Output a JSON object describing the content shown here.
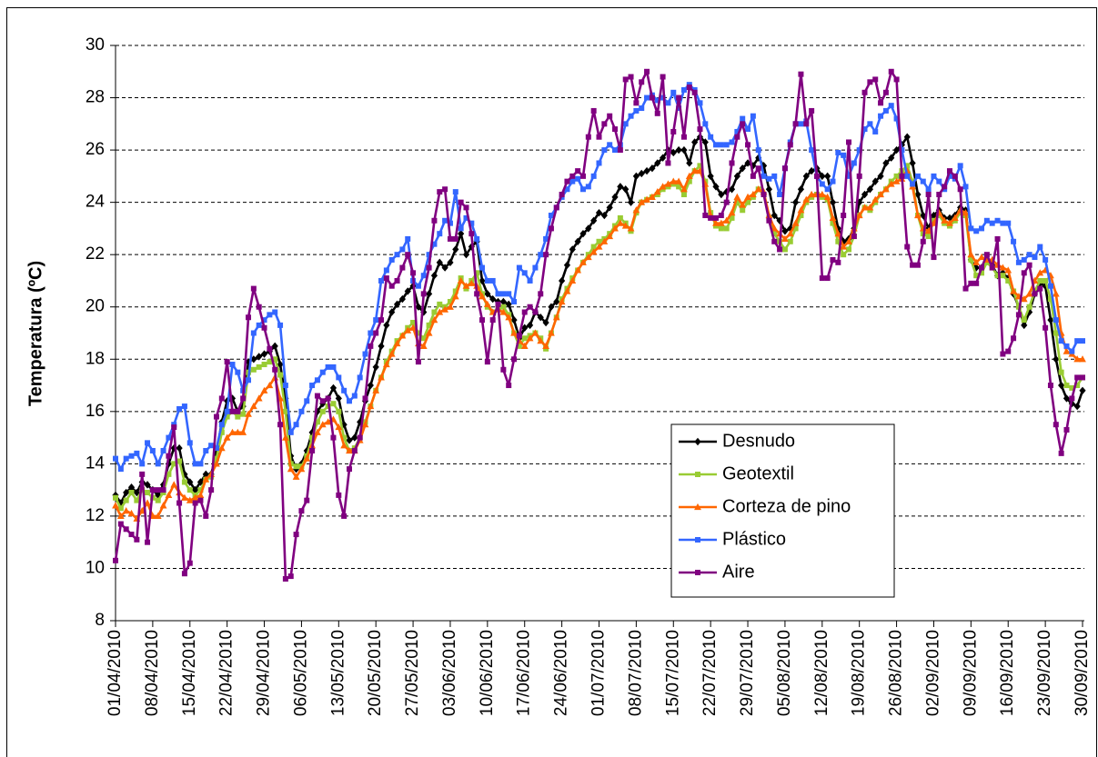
{
  "chart_data": {
    "type": "line",
    "y_label": "Temperatura (ºC)",
    "ylim": [
      8,
      30
    ],
    "yticks": [
      8,
      10,
      12,
      14,
      16,
      18,
      20,
      22,
      24,
      26,
      28,
      30
    ],
    "grid": true,
    "legend": "lower right",
    "categories": [
      "01/04/2010",
      null,
      null,
      null,
      null,
      null,
      null,
      "08/04/2010",
      null,
      null,
      null,
      null,
      null,
      null,
      "15/04/2010",
      null,
      null,
      null,
      null,
      null,
      null,
      "22/04/2010",
      null,
      null,
      null,
      null,
      null,
      null,
      "29/04/2010",
      null,
      null,
      null,
      null,
      null,
      null,
      "06/05/2010",
      null,
      null,
      null,
      null,
      null,
      null,
      "13/05/2010",
      null,
      null,
      null,
      null,
      null,
      null,
      "20/05/2010",
      null,
      null,
      null,
      null,
      null,
      null,
      "27/05/2010",
      null,
      null,
      null,
      null,
      null,
      null,
      "03/06/2010",
      null,
      null,
      null,
      null,
      null,
      null,
      "10/06/2010",
      null,
      null,
      null,
      null,
      null,
      null,
      "17/06/2010",
      null,
      null,
      null,
      null,
      null,
      null,
      "24/06/2010",
      null,
      null,
      null,
      null,
      null,
      null,
      "01/07/2010",
      null,
      null,
      null,
      null,
      null,
      null,
      "08/07/2010",
      null,
      null,
      null,
      null,
      null,
      null,
      "15/07/2010",
      null,
      null,
      null,
      null,
      null,
      null,
      "22/07/2010",
      null,
      null,
      null,
      null,
      null,
      null,
      "29/07/2010",
      null,
      null,
      null,
      null,
      null,
      null,
      "05/08/2010",
      null,
      null,
      null,
      null,
      null,
      null,
      "12/08/2010",
      null,
      null,
      null,
      null,
      null,
      null,
      "19/08/2010",
      null,
      null,
      null,
      null,
      null,
      null,
      "26/08/2010",
      null,
      null,
      null,
      null,
      null,
      null,
      "02/09/2010",
      null,
      null,
      null,
      null,
      null,
      null,
      "09/09/2010",
      null,
      null,
      null,
      null,
      null,
      null,
      "16/09/2010",
      null,
      null,
      null,
      null,
      null,
      null,
      "23/09/2010",
      null,
      null,
      null,
      null,
      null,
      null,
      "30/09/2010"
    ],
    "series": [
      {
        "name": "Desnudo",
        "color": "#000000",
        "marker": "diamond",
        "values": [
          12.8,
          12.5,
          12.9,
          13.1,
          12.9,
          13.3,
          13.2,
          13.0,
          12.8,
          13.2,
          14.0,
          14.6,
          14.6,
          13.6,
          13.3,
          13.0,
          13.3,
          13.6,
          13.6,
          14.4,
          15.6,
          16.4,
          16.5,
          16.0,
          16.2,
          17.9,
          18.0,
          18.1,
          18.2,
          18.3,
          18.5,
          17.8,
          16.5,
          14.3,
          13.8,
          14.0,
          14.5,
          15.2,
          16.0,
          16.3,
          16.5,
          16.9,
          16.5,
          15.5,
          14.9,
          15.0,
          15.6,
          16.4,
          17.0,
          17.7,
          18.5,
          19.3,
          19.8,
          20.1,
          20.3,
          20.6,
          20.8,
          20.0,
          19.8,
          20.5,
          21.2,
          21.7,
          21.5,
          21.7,
          22.2,
          22.8,
          22.0,
          22.3,
          22.5,
          21.0,
          20.5,
          20.3,
          20.2,
          20.2,
          20.1,
          19.5,
          18.8,
          19.2,
          19.3,
          19.8,
          19.6,
          19.4,
          20.0,
          20.2,
          21.0,
          21.6,
          22.2,
          22.5,
          22.8,
          23.0,
          23.3,
          23.6,
          23.5,
          23.8,
          24.2,
          24.6,
          24.5,
          24.0,
          25.0,
          25.1,
          25.2,
          25.3,
          25.5,
          25.7,
          26.0,
          25.9,
          26.0,
          26.0,
          25.5,
          26.3,
          26.5,
          26.3,
          25.0,
          24.6,
          24.3,
          24.4,
          24.5,
          25.0,
          25.3,
          25.5,
          25.4,
          25.7,
          25.4,
          24.5,
          23.5,
          23.3,
          22.9,
          23.0,
          24.0,
          24.5,
          25.0,
          25.2,
          25.3,
          25.0,
          25.0,
          24.0,
          23.0,
          22.5,
          22.6,
          23.0,
          24.0,
          24.3,
          24.5,
          24.8,
          25.0,
          25.5,
          25.7,
          26.0,
          26.2,
          26.5,
          25.5,
          24.3,
          23.5,
          23.0,
          23.5,
          23.7,
          23.4,
          23.4,
          23.5,
          23.8,
          23.7,
          21.8,
          21.5,
          21.5,
          21.8,
          21.6,
          21.2,
          21.3,
          21.1,
          20.5,
          20.0,
          19.3,
          19.8,
          20.5,
          20.9,
          20.8,
          19.5,
          18.0,
          17.0,
          16.5,
          16.3,
          16.2,
          16.8
        ]
      },
      {
        "name": "Geotextil",
        "color": "#99cc33",
        "marker": "square",
        "values": [
          12.7,
          12.3,
          12.6,
          12.9,
          12.6,
          13.0,
          12.9,
          12.7,
          12.6,
          12.9,
          13.6,
          14.0,
          14.1,
          13.3,
          13.0,
          12.8,
          13.0,
          13.4,
          13.5,
          14.2,
          15.2,
          15.8,
          16.0,
          15.8,
          15.9,
          17.5,
          17.6,
          17.7,
          17.8,
          17.9,
          18.0,
          17.4,
          16.0,
          14.0,
          13.9,
          13.9,
          14.3,
          15.0,
          15.6,
          16.0,
          16.2,
          16.3,
          16.0,
          15.0,
          14.5,
          14.6,
          15.0,
          15.6,
          16.2,
          16.8,
          17.3,
          17.9,
          18.3,
          18.7,
          18.9,
          19.2,
          19.4,
          19.0,
          18.8,
          19.3,
          19.8,
          20.1,
          20.0,
          20.2,
          20.6,
          21.1,
          20.7,
          21.0,
          21.3,
          20.5,
          20.0,
          19.8,
          19.9,
          20.0,
          19.7,
          19.0,
          18.5,
          18.8,
          18.9,
          19.0,
          18.8,
          18.4,
          19.0,
          19.6,
          20.3,
          20.7,
          21.1,
          21.4,
          21.7,
          22.0,
          22.3,
          22.5,
          22.6,
          22.8,
          23.1,
          23.4,
          23.2,
          22.9,
          23.6,
          24.0,
          24.1,
          24.2,
          24.3,
          24.5,
          24.6,
          24.7,
          24.6,
          24.3,
          24.8,
          25.2,
          25.4,
          24.8,
          23.6,
          23.1,
          23.0,
          23.0,
          23.4,
          24.0,
          23.7,
          24.0,
          24.2,
          24.5,
          24.3,
          23.4,
          22.8,
          22.5,
          22.2,
          22.5,
          23.0,
          23.5,
          24.0,
          24.2,
          24.3,
          24.2,
          24.1,
          23.2,
          22.5,
          22.0,
          22.2,
          22.7,
          23.5,
          23.8,
          23.7,
          24.0,
          24.3,
          24.5,
          24.8,
          25.0,
          25.2,
          25.4,
          24.8,
          23.5,
          22.8,
          22.7,
          23.3,
          23.5,
          23.2,
          23.1,
          23.3,
          23.6,
          23.5,
          21.8,
          21.2,
          21.3,
          21.7,
          21.5,
          21.2,
          21.2,
          21.0,
          20.6,
          20.0,
          19.5,
          20.0,
          20.6,
          21.0,
          21.0,
          20.3,
          19.0,
          17.5,
          17.0,
          16.9,
          17.0,
          17.3
        ]
      },
      {
        "name": "Corteza de pino",
        "color": "#ff6600",
        "marker": "triangle",
        "values": [
          12.4,
          12.0,
          12.2,
          12.1,
          11.9,
          12.2,
          12.5,
          12.0,
          12.0,
          12.4,
          12.8,
          13.2,
          12.9,
          12.7,
          12.6,
          12.7,
          12.8,
          13.4,
          13.6,
          14.0,
          14.6,
          15.0,
          15.2,
          15.2,
          15.2,
          15.9,
          16.2,
          16.5,
          16.8,
          17.0,
          17.3,
          16.5,
          15.0,
          13.8,
          13.5,
          13.8,
          14.2,
          14.7,
          15.2,
          15.5,
          15.6,
          15.7,
          15.4,
          14.7,
          14.5,
          14.5,
          14.9,
          15.5,
          16.2,
          16.8,
          17.3,
          17.8,
          18.2,
          18.6,
          18.9,
          19.1,
          19.2,
          18.6,
          18.5,
          19.0,
          19.5,
          19.8,
          19.9,
          20.0,
          20.4,
          21.0,
          20.8,
          20.9,
          20.8,
          20.4,
          20.1,
          19.8,
          19.9,
          19.8,
          19.6,
          19.0,
          18.7,
          18.5,
          18.8,
          19.0,
          18.7,
          18.5,
          19.0,
          19.6,
          20.2,
          20.6,
          21.0,
          21.4,
          21.7,
          21.9,
          22.1,
          22.3,
          22.5,
          22.7,
          23.0,
          23.2,
          23.1,
          23.0,
          23.7,
          24.0,
          24.1,
          24.2,
          24.4,
          24.6,
          24.7,
          24.8,
          24.8,
          24.5,
          25.0,
          25.2,
          25.2,
          24.7,
          23.5,
          23.2,
          23.2,
          23.3,
          23.6,
          24.2,
          23.9,
          24.2,
          24.3,
          24.5,
          24.4,
          23.5,
          23.0,
          22.8,
          22.6,
          22.8,
          23.2,
          23.7,
          24.1,
          24.3,
          24.3,
          24.3,
          24.2,
          23.4,
          22.8,
          22.3,
          22.5,
          23.0,
          23.5,
          23.8,
          23.8,
          24.1,
          24.3,
          24.5,
          24.7,
          24.8,
          24.9,
          25.2,
          24.6,
          23.5,
          23.0,
          22.9,
          23.2,
          23.6,
          23.3,
          23.2,
          23.4,
          23.7,
          23.6,
          22.0,
          21.7,
          21.9,
          21.8,
          21.8,
          21.6,
          21.5,
          21.4,
          20.6,
          20.4,
          20.3,
          20.5,
          21.0,
          21.3,
          21.4,
          21.2,
          20.5,
          19.0,
          18.3,
          18.2,
          18.0,
          18.0
        ]
      },
      {
        "name": "Plástico",
        "color": "#3366ff",
        "marker": "square",
        "values": [
          14.2,
          13.8,
          14.2,
          14.3,
          14.4,
          14.0,
          14.8,
          14.5,
          14.0,
          14.5,
          15.0,
          15.5,
          16.1,
          16.2,
          14.8,
          14.0,
          14.0,
          14.5,
          14.7,
          14.6,
          15.5,
          16.0,
          17.8,
          17.5,
          16.8,
          17.2,
          19.0,
          19.3,
          19.5,
          19.7,
          19.8,
          19.3,
          17.0,
          15.2,
          15.5,
          16.0,
          16.4,
          17.0,
          17.2,
          17.5,
          17.7,
          17.7,
          17.3,
          16.8,
          16.4,
          16.6,
          17.3,
          18.2,
          19.0,
          19.5,
          21.0,
          21.4,
          21.8,
          22.0,
          22.2,
          22.6,
          21.0,
          20.8,
          21.2,
          22.0,
          22.4,
          22.8,
          23.3,
          23.2,
          24.4,
          23.0,
          23.4,
          23.2,
          22.6,
          21.5,
          21.0,
          21.0,
          20.5,
          20.5,
          20.5,
          20.2,
          21.5,
          21.3,
          21.0,
          21.5,
          22.0,
          22.6,
          23.5,
          23.8,
          24.2,
          24.5,
          24.8,
          24.9,
          24.5,
          24.6,
          25.0,
          25.5,
          26.0,
          26.2,
          26.0,
          26.2,
          27.0,
          27.3,
          27.5,
          27.6,
          28.0,
          28.1,
          27.9,
          28.0,
          27.8,
          28.2,
          27.6,
          28.3,
          28.5,
          28.3,
          27.8,
          27.0,
          26.5,
          26.2,
          26.2,
          26.2,
          26.3,
          26.7,
          27.2,
          26.8,
          27.3,
          26.0,
          25.0,
          24.9,
          25.0,
          24.3,
          25.3,
          26.3,
          27.0,
          27.0,
          27.1,
          26.0,
          25.0,
          24.7,
          24.5,
          24.8,
          25.9,
          25.8,
          25.0,
          25.5,
          26.0,
          26.8,
          27.0,
          26.7,
          27.3,
          27.5,
          27.7,
          27.2,
          26.0,
          25.0,
          24.7,
          25.0,
          24.8,
          24.5,
          25.0,
          24.8,
          24.5,
          25.0,
          24.9,
          25.4,
          24.6,
          23.0,
          22.9,
          23.0,
          23.3,
          23.2,
          23.3,
          23.2,
          23.2,
          22.5,
          21.7,
          21.8,
          22.0,
          21.9,
          22.3,
          21.8,
          20.8,
          19.5,
          18.7,
          18.5,
          18.3,
          18.7,
          18.7
        ]
      },
      {
        "name": "Aire",
        "color": "#800080",
        "marker": "square",
        "values": [
          10.3,
          11.7,
          11.5,
          11.3,
          11.1,
          13.6,
          11.0,
          13.0,
          13.0,
          13.0,
          14.3,
          15.4,
          12.5,
          9.8,
          10.2,
          12.5,
          12.6,
          12.0,
          13.0,
          15.8,
          16.5,
          17.9,
          16.0,
          16.0,
          16.5,
          19.6,
          20.7,
          20.0,
          19.2,
          18.4,
          17.6,
          15.5,
          9.6,
          9.7,
          11.3,
          12.2,
          12.6,
          14.5,
          16.6,
          16.4,
          16.5,
          15.0,
          12.8,
          12.0,
          13.8,
          14.5,
          15.0,
          16.5,
          18.5,
          19.0,
          19.5,
          21.1,
          20.8,
          21.0,
          21.5,
          22.0,
          21.3,
          17.9,
          20.5,
          21.5,
          23.3,
          24.4,
          24.5,
          22.6,
          22.6,
          24.0,
          23.8,
          22.8,
          20.5,
          19.5,
          17.9,
          19.5,
          20.1,
          17.6,
          17.0,
          18.0,
          18.9,
          19.8,
          20.0,
          19.8,
          20.5,
          22.0,
          23.0,
          23.8,
          24.3,
          24.8,
          25.0,
          25.2,
          25.0,
          26.5,
          27.5,
          26.5,
          27.0,
          27.3,
          26.8,
          26.0,
          28.7,
          28.8,
          27.8,
          28.6,
          29.0,
          28.0,
          27.4,
          28.8,
          25.5,
          26.7,
          28.0,
          26.5,
          28.4,
          28.2,
          26.8,
          23.5,
          23.4,
          23.4,
          23.5,
          24.0,
          25.5,
          26.5,
          27.0,
          26.2,
          25.0,
          25.3,
          24.3,
          23.3,
          22.5,
          22.2,
          25.3,
          26.2,
          27.0,
          28.9,
          27.0,
          27.5,
          25.0,
          21.1,
          21.1,
          21.8,
          21.7,
          23.5,
          26.3,
          22.7,
          25.0,
          28.2,
          28.6,
          28.7,
          27.8,
          28.2,
          29.0,
          28.7,
          25.0,
          22.3,
          21.6,
          21.6,
          22.5,
          24.3,
          21.9,
          24.3,
          24.6,
          25.2,
          25.0,
          24.5,
          20.7,
          20.9,
          20.9,
          21.5,
          22.0,
          21.5,
          22.6,
          18.2,
          18.3,
          18.8,
          19.7,
          21.3,
          21.6,
          20.5,
          20.7,
          19.2,
          17.0,
          15.5,
          14.4,
          15.3,
          16.5,
          17.3,
          17.3
        ]
      }
    ]
  }
}
